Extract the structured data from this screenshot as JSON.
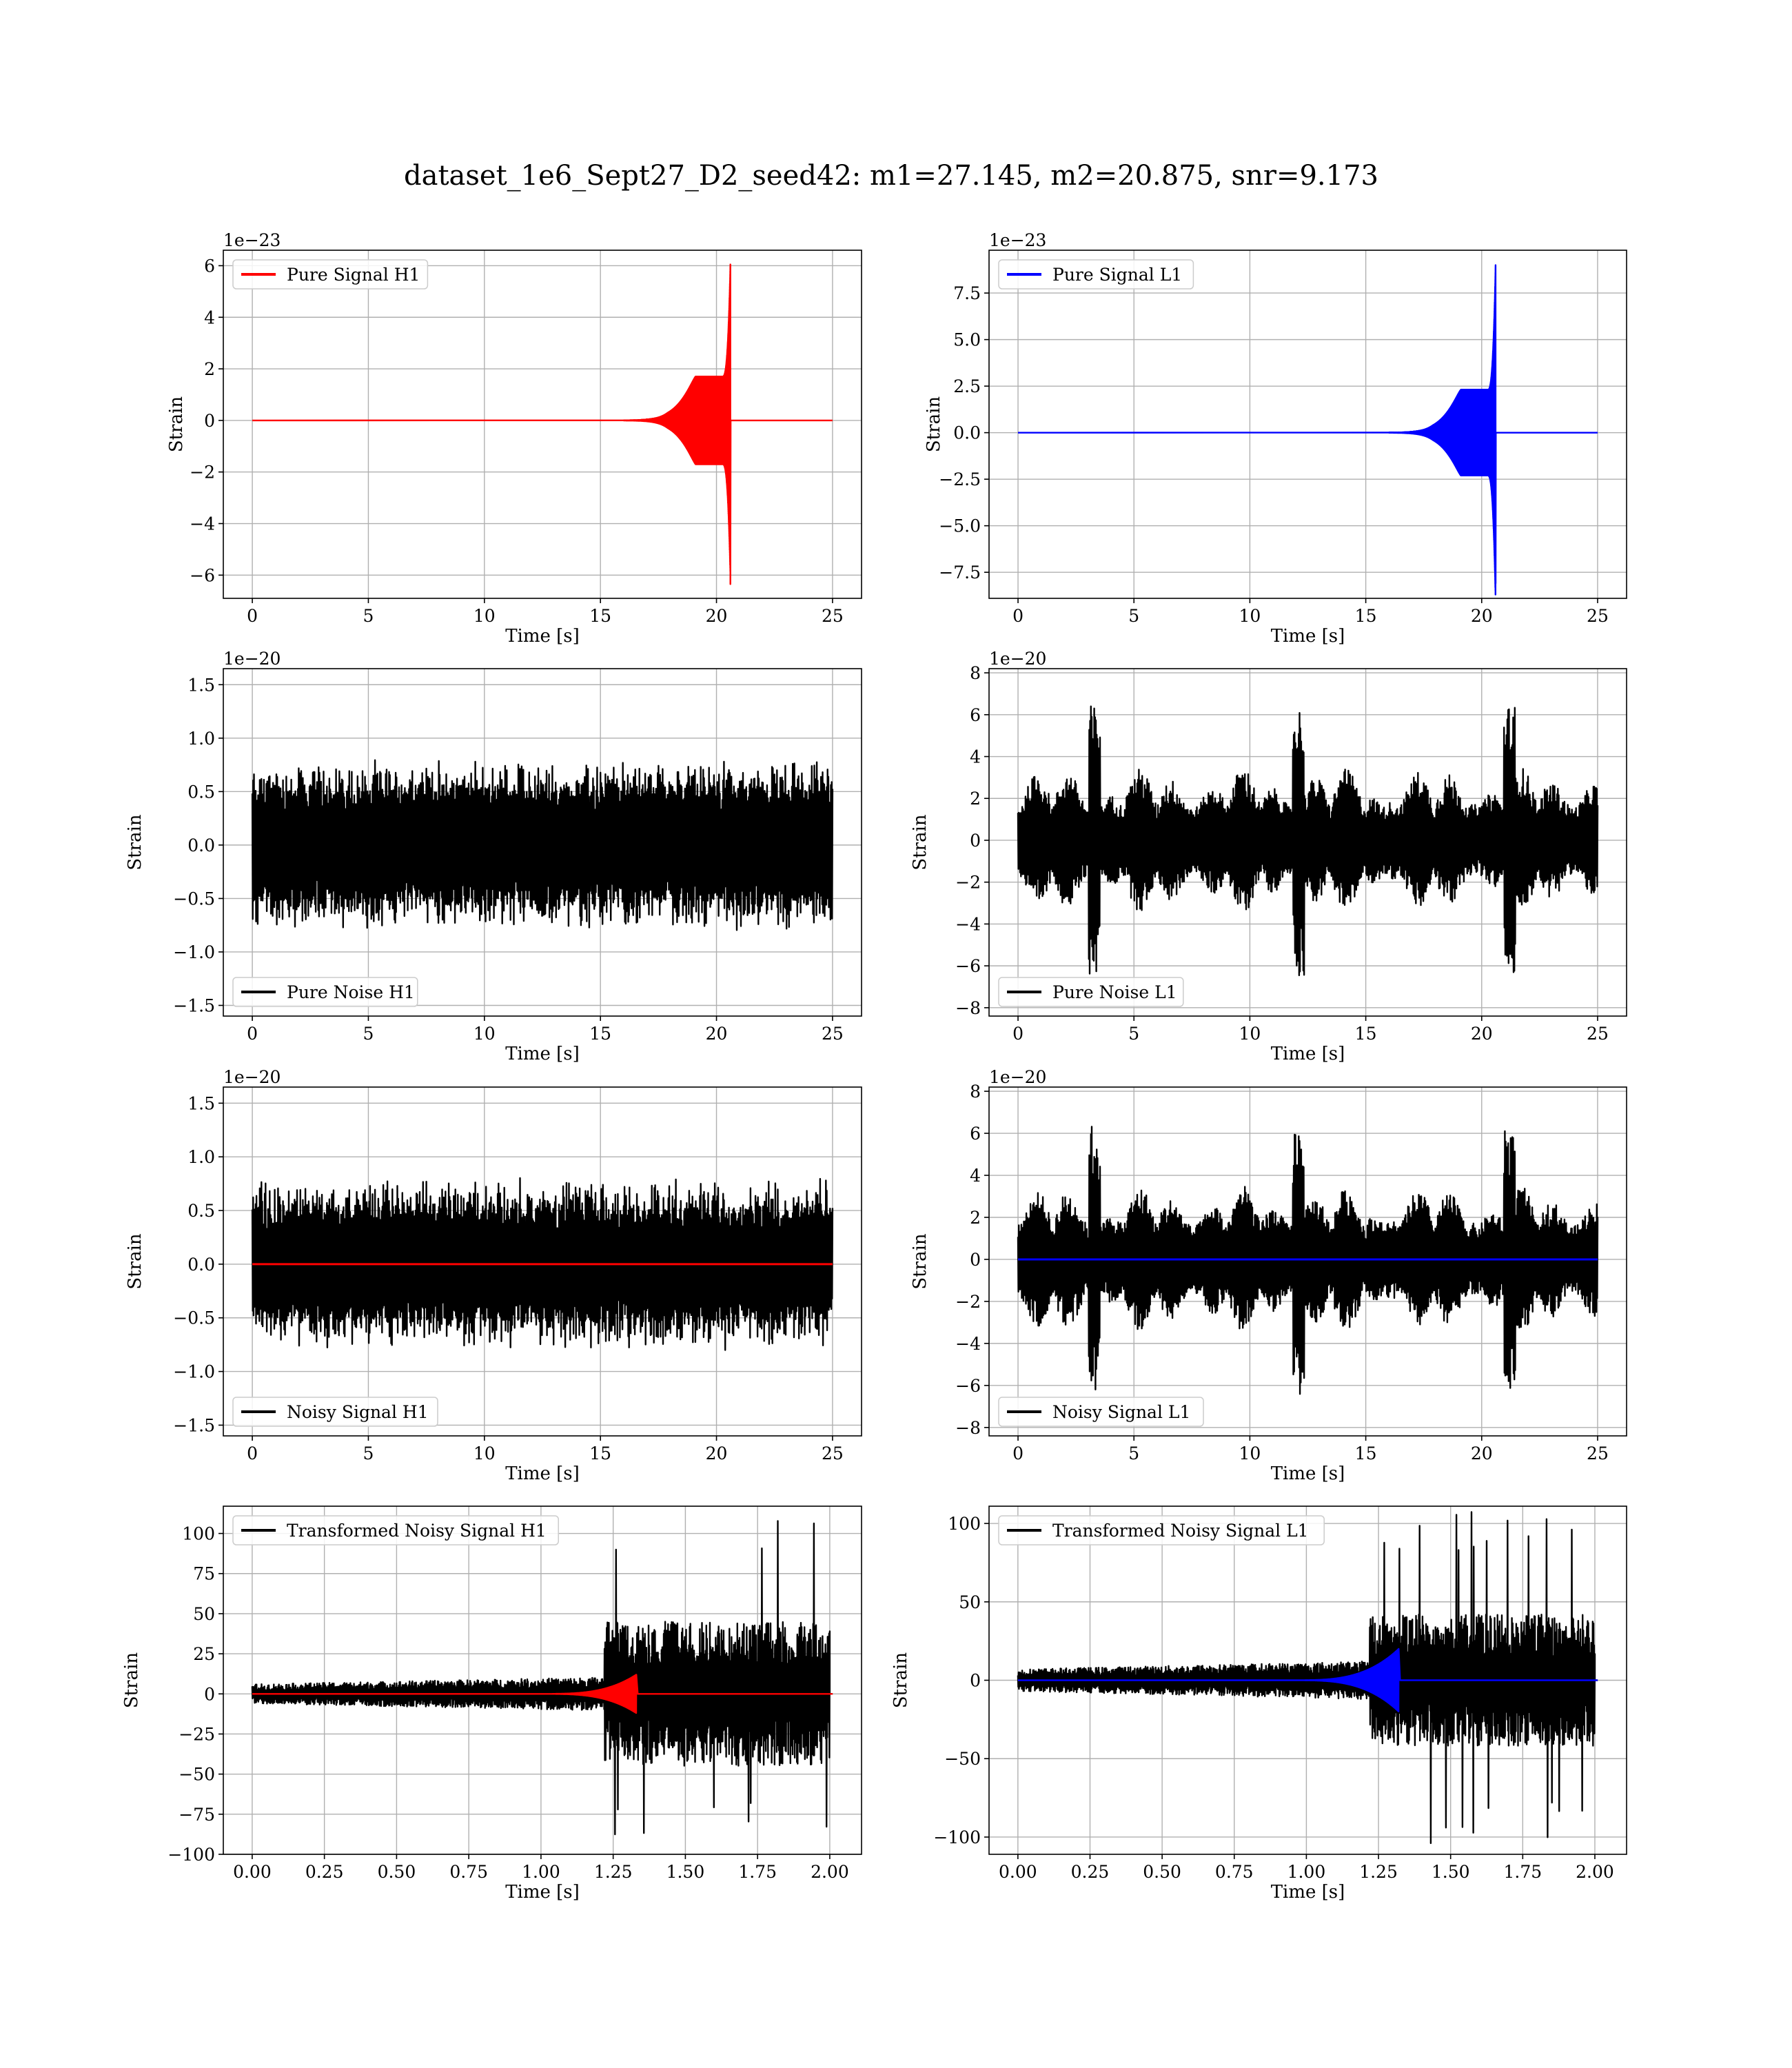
{
  "figure": {
    "title": "dataset_1e6_Sept27_D2_seed42: m1=27.145, m2=20.875, snr=9.173"
  },
  "colors": {
    "h1": "#ff0000",
    "l1": "#0000ff",
    "noise": "#000000",
    "grid": "#b0b0b0"
  },
  "chart_data": [
    {
      "id": "pure-signal-h1",
      "type": "line",
      "xlabel": "Time [s]",
      "ylabel": "Strain",
      "y_offset_label": "1e−23",
      "xlim": [
        -1.25,
        26.25
      ],
      "ylim": [
        -6.9,
        6.6
      ],
      "xticks": [
        0,
        5,
        10,
        15,
        20,
        25
      ],
      "xtick_labels": [
        "0",
        "5",
        "10",
        "15",
        "20",
        "25"
      ],
      "yticks": [
        -6,
        -4,
        -2,
        0,
        2,
        4,
        6
      ],
      "ytick_labels": [
        "−6",
        "−4",
        "−2",
        "0",
        "2",
        "4",
        "6"
      ],
      "grid": true,
      "legend_position": "upper left",
      "series": [
        {
          "name": "Pure Signal H1",
          "color": "#ff0000",
          "kind": "chirp",
          "start": 16.0,
          "end": 20.6,
          "amplitude": 6.05,
          "amplitude_min": -6.35,
          "plateau": 1.7
        }
      ]
    },
    {
      "id": "pure-signal-l1",
      "type": "line",
      "xlabel": "Time [s]",
      "ylabel": "Strain",
      "y_offset_label": "1e−23",
      "xlim": [
        -1.25,
        26.25
      ],
      "ylim": [
        -8.9,
        9.8
      ],
      "xticks": [
        0,
        5,
        10,
        15,
        20,
        25
      ],
      "xtick_labels": [
        "0",
        "5",
        "10",
        "15",
        "20",
        "25"
      ],
      "yticks": [
        -7.5,
        -5,
        -2.5,
        0,
        2.5,
        5,
        7.5
      ],
      "ytick_labels": [
        "−7.5",
        "−5.0",
        "−2.5",
        "0.0",
        "2.5",
        "5.0",
        "7.5"
      ],
      "grid": true,
      "legend_position": "upper left",
      "series": [
        {
          "name": "Pure Signal L1",
          "color": "#0000ff",
          "kind": "chirp",
          "start": 16.0,
          "end": 20.6,
          "amplitude": 9.0,
          "amplitude_min": -8.1,
          "plateau": 2.3
        }
      ]
    },
    {
      "id": "pure-noise-h1",
      "type": "line",
      "xlabel": "Time [s]",
      "ylabel": "Strain",
      "y_offset_label": "1e−20",
      "xlim": [
        -1.25,
        26.25
      ],
      "ylim": [
        -1.6,
        1.65
      ],
      "xticks": [
        0,
        5,
        10,
        15,
        20,
        25
      ],
      "xtick_labels": [
        "0",
        "5",
        "10",
        "15",
        "20",
        "25"
      ],
      "yticks": [
        -1.5,
        -1.0,
        -0.5,
        0,
        0.5,
        1.0,
        1.5
      ],
      "ytick_labels": [
        "−1.5",
        "−1.0",
        "−0.5",
        "0.0",
        "0.5",
        "1.0",
        "1.5"
      ],
      "grid": true,
      "legend_position": "lower left",
      "series": [
        {
          "name": "Pure Noise H1",
          "color": "#000000",
          "kind": "noise",
          "start": 0,
          "end": 25,
          "amplitude": 0.9,
          "peak": 1.5
        }
      ]
    },
    {
      "id": "pure-noise-l1",
      "type": "line",
      "xlabel": "Time [s]",
      "ylabel": "Strain",
      "y_offset_label": "1e−20",
      "xlim": [
        -1.25,
        26.25
      ],
      "ylim": [
        -8.4,
        8.2
      ],
      "xticks": [
        0,
        5,
        10,
        15,
        20,
        25
      ],
      "xtick_labels": [
        "0",
        "5",
        "10",
        "15",
        "20",
        "25"
      ],
      "yticks": [
        -8,
        -6,
        -4,
        -2,
        0,
        2,
        4,
        6,
        8
      ],
      "ytick_labels": [
        "−8",
        "−6",
        "−4",
        "−2",
        "0",
        "2",
        "4",
        "6",
        "8"
      ],
      "grid": true,
      "legend_position": "lower left",
      "series": [
        {
          "name": "Pure Noise L1",
          "color": "#000000",
          "kind": "noise_bursty",
          "start": 0,
          "end": 25,
          "amplitude": 3.5,
          "peak": 7.6
        }
      ]
    },
    {
      "id": "noisy-signal-h1",
      "type": "line",
      "xlabel": "Time [s]",
      "ylabel": "Strain",
      "y_offset_label": "1e−20",
      "xlim": [
        -1.25,
        26.25
      ],
      "ylim": [
        -1.6,
        1.65
      ],
      "xticks": [
        0,
        5,
        10,
        15,
        20,
        25
      ],
      "xtick_labels": [
        "0",
        "5",
        "10",
        "15",
        "20",
        "25"
      ],
      "yticks": [
        -1.5,
        -1.0,
        -0.5,
        0,
        0.5,
        1.0,
        1.5
      ],
      "ytick_labels": [
        "−1.5",
        "−1.0",
        "−0.5",
        "0.0",
        "0.5",
        "1.0",
        "1.5"
      ],
      "grid": true,
      "legend_position": "lower left",
      "series": [
        {
          "name": "Noisy Signal H1",
          "color": "#000000",
          "kind": "noise",
          "start": 0,
          "end": 25,
          "amplitude": 0.9,
          "peak": 1.5
        },
        {
          "color": "#ff0000",
          "kind": "flat",
          "start": 0,
          "end": 25,
          "value": 0
        }
      ]
    },
    {
      "id": "noisy-signal-l1",
      "type": "line",
      "xlabel": "Time [s]",
      "ylabel": "Strain",
      "y_offset_label": "1e−20",
      "xlim": [
        -1.25,
        26.25
      ],
      "ylim": [
        -8.4,
        8.2
      ],
      "xticks": [
        0,
        5,
        10,
        15,
        20,
        25
      ],
      "xtick_labels": [
        "0",
        "5",
        "10",
        "15",
        "20",
        "25"
      ],
      "yticks": [
        -8,
        -6,
        -4,
        -2,
        0,
        2,
        4,
        6,
        8
      ],
      "ytick_labels": [
        "−8",
        "−6",
        "−4",
        "−2",
        "0",
        "2",
        "4",
        "6",
        "8"
      ],
      "grid": true,
      "legend_position": "lower left",
      "series": [
        {
          "name": "Noisy Signal L1",
          "color": "#000000",
          "kind": "noise_bursty",
          "start": 0,
          "end": 25,
          "amplitude": 3.5,
          "peak": 7.6
        },
        {
          "color": "#0000ff",
          "kind": "flat",
          "start": 0,
          "end": 25,
          "value": 0
        }
      ]
    },
    {
      "id": "transformed-h1",
      "type": "line",
      "xlabel": "Time [s]",
      "ylabel": "Strain",
      "y_offset_label": "",
      "xlim": [
        -0.1,
        2.11
      ],
      "ylim": [
        -100,
        117
      ],
      "xticks": [
        0,
        0.25,
        0.5,
        0.75,
        1.0,
        1.25,
        1.5,
        1.75,
        2.0
      ],
      "xtick_labels": [
        "0.00",
        "0.25",
        "0.50",
        "0.75",
        "1.00",
        "1.25",
        "1.50",
        "1.75",
        "2.00"
      ],
      "yticks": [
        -100,
        -75,
        -50,
        -25,
        0,
        25,
        50,
        75,
        100
      ],
      "ytick_labels": [
        "−100",
        "−75",
        "−50",
        "−25",
        "0",
        "25",
        "50",
        "75",
        "100"
      ],
      "grid": true,
      "legend_position": "upper left",
      "series": [
        {
          "name": "Transformed Noisy Signal H1",
          "color": "#000000",
          "kind": "whitened",
          "start": 0,
          "end": 2.0,
          "step_at": 1.22,
          "low": 6,
          "high": 45,
          "peak_hi": 108,
          "peak_lo": -90
        },
        {
          "color": "#ff0000",
          "kind": "chirp_small",
          "start": 0,
          "end": 2.0,
          "merger": 1.33,
          "onset": 1.0,
          "amplitude": 12
        }
      ]
    },
    {
      "id": "transformed-l1",
      "type": "line",
      "xlabel": "Time [s]",
      "ylabel": "Strain",
      "y_offset_label": "",
      "xlim": [
        -0.1,
        2.11
      ],
      "ylim": [
        -111,
        111
      ],
      "xticks": [
        0,
        0.25,
        0.5,
        0.75,
        1.0,
        1.25,
        1.5,
        1.75,
        2.0
      ],
      "xtick_labels": [
        "0.00",
        "0.25",
        "0.50",
        "0.75",
        "1.00",
        "1.25",
        "1.50",
        "1.75",
        "2.00"
      ],
      "yticks": [
        -100,
        -50,
        0,
        50,
        100
      ],
      "ytick_labels": [
        "−100",
        "−50",
        "0",
        "50",
        "100"
      ],
      "grid": true,
      "legend_position": "upper left",
      "series": [
        {
          "name": "Transformed Noisy Signal L1",
          "color": "#000000",
          "kind": "whitened",
          "start": 0,
          "end": 2.0,
          "step_at": 1.22,
          "low": 7,
          "high": 42,
          "peak_hi": 108,
          "peak_lo": -104
        },
        {
          "color": "#0000ff",
          "kind": "chirp_small",
          "start": 0,
          "end": 2.0,
          "merger": 1.32,
          "onset": 0.95,
          "amplitude": 20
        }
      ]
    }
  ]
}
